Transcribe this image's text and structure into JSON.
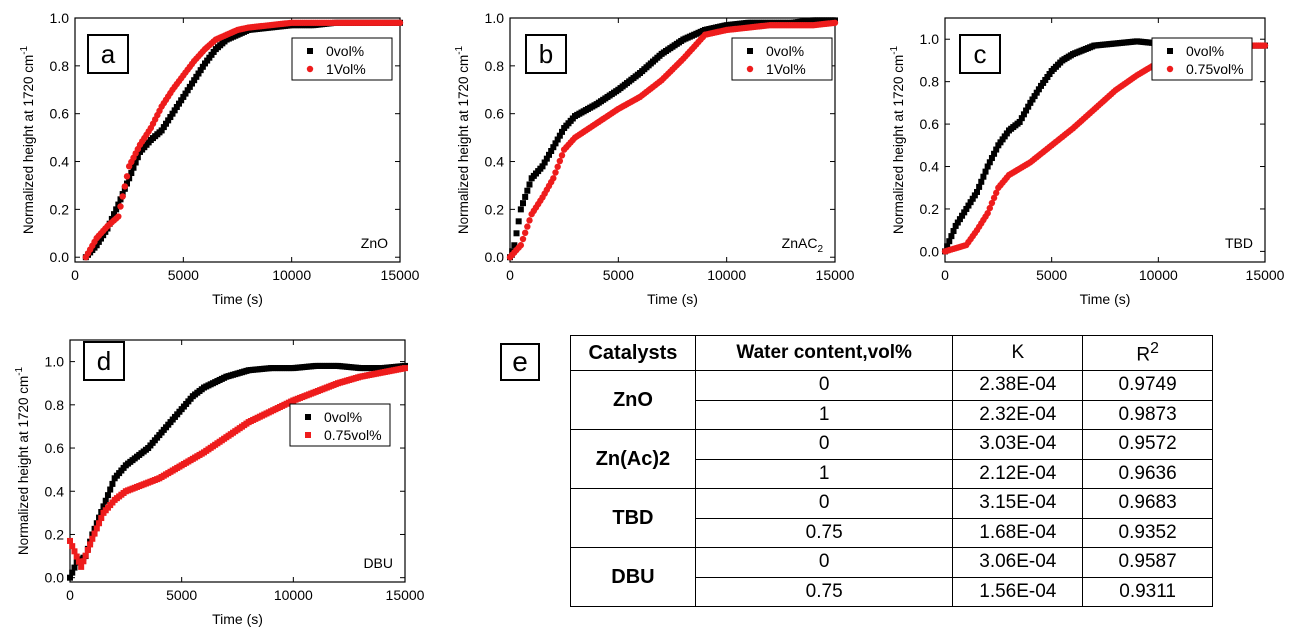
{
  "panels": [
    {
      "id": "a",
      "tag": "a",
      "ylabel": "Normalized height at 1720 cm",
      "ylabel_sup": "-1",
      "xlabel": "Time (s)",
      "corner_label": "ZnO",
      "corner_label_sub": "",
      "xticks": [
        "0",
        "5000",
        "10000",
        "15000"
      ],
      "yticks": [
        "0.0",
        "0.2",
        "0.4",
        "0.6",
        "0.8",
        "1.0"
      ],
      "legend": [
        "0vol%",
        "1Vol%"
      ]
    },
    {
      "id": "b",
      "tag": "b",
      "ylabel": "Normalized height at 1720 cm",
      "ylabel_sup": "-1",
      "xlabel": "Time (s)",
      "corner_label": "ZnAC",
      "corner_label_sub": "2",
      "xticks": [
        "0",
        "5000",
        "10000",
        "15000"
      ],
      "yticks": [
        "0.0",
        "0.2",
        "0.4",
        "0.6",
        "0.8",
        "1.0"
      ],
      "legend": [
        "0vol%",
        "1Vol%"
      ]
    },
    {
      "id": "c",
      "tag": "c",
      "ylabel": "Normalized height at 1720 cm",
      "ylabel_sup": "-1",
      "xlabel": "Time (s)",
      "corner_label": "TBD",
      "corner_label_sub": "",
      "xticks": [
        "0",
        "5000",
        "10000",
        "15000"
      ],
      "yticks": [
        "0.0",
        "0.2",
        "0.4",
        "0.6",
        "0.8",
        "1.0"
      ],
      "legend": [
        "0vol%",
        "0.75vol%"
      ]
    },
    {
      "id": "d",
      "tag": "d",
      "ylabel": "Normalized height at 1720 cm",
      "ylabel_sup": "-1",
      "xlabel": "Time (s)",
      "corner_label": "DBU",
      "corner_label_sub": "",
      "xticks": [
        "0",
        "5000",
        "10000",
        "15000"
      ],
      "yticks": [
        "0.0",
        "0.2",
        "0.4",
        "0.6",
        "0.8",
        "1.0"
      ],
      "legend": [
        "0vol%",
        "0.75vol%"
      ]
    }
  ],
  "table": {
    "tag": "e",
    "headers": {
      "catalysts": "Catalysts",
      "water": "Water content,vol%",
      "k": "K",
      "r": "R",
      "r_sup": "2"
    },
    "groups": [
      {
        "catalyst": "ZnO",
        "rows": [
          {
            "water": "0",
            "k": "2.38E-04",
            "r2": "0.9749"
          },
          {
            "water": "1",
            "k": "2.32E-04",
            "r2": "0.9873"
          }
        ]
      },
      {
        "catalyst": "Zn(Ac)2",
        "rows": [
          {
            "water": "0",
            "k": "3.03E-04",
            "r2": "0.9572"
          },
          {
            "water": "1",
            "k": "2.12E-04",
            "r2": "0.9636"
          }
        ]
      },
      {
        "catalyst": "TBD",
        "rows": [
          {
            "water": "0",
            "k": "3.15E-04",
            "r2": "0.9683"
          },
          {
            "water": "0.75",
            "k": "1.68E-04",
            "r2": "0.9352"
          }
        ]
      },
      {
        "catalyst": "DBU",
        "rows": [
          {
            "water": "0",
            "k": "3.06E-04",
            "r2": "0.9587"
          },
          {
            "water": "0.75",
            "k": "1.56E-04",
            "r2": "0.9311"
          }
        ]
      }
    ]
  },
  "colors": {
    "series0": "#000000",
    "series1": "#ee1c1c"
  },
  "chart_data": [
    {
      "type": "scatter",
      "panel": "a",
      "xlabel": "Time (s)",
      "ylabel": "Normalized height at 1720 cm-1",
      "xlim": [
        0,
        15000
      ],
      "ylim": [
        -0.02,
        1.0
      ],
      "legend_position": "top-right",
      "series": [
        {
          "name": "0vol%",
          "marker": "square",
          "color": "#000000",
          "x": [
            500,
            1000,
            1500,
            2000,
            2500,
            3000,
            3500,
            4000,
            4500,
            5000,
            5500,
            6000,
            6500,
            7000,
            7500,
            8000,
            9000,
            10000,
            11000,
            12000,
            13000,
            14000,
            15000
          ],
          "y": [
            0.0,
            0.05,
            0.12,
            0.22,
            0.33,
            0.44,
            0.49,
            0.53,
            0.6,
            0.67,
            0.74,
            0.81,
            0.87,
            0.91,
            0.93,
            0.95,
            0.96,
            0.97,
            0.97,
            0.98,
            0.98,
            0.98,
            0.98
          ]
        },
        {
          "name": "1Vol%",
          "marker": "circle",
          "color": "#ee1c1c",
          "x": [
            500,
            1000,
            1500,
            2000,
            2500,
            3000,
            3500,
            4000,
            4500,
            5000,
            5500,
            6000,
            6500,
            7000,
            7500,
            8000,
            9000,
            10000,
            11000,
            12000,
            13000,
            14000,
            15000
          ],
          "y": [
            0.0,
            0.08,
            0.13,
            0.17,
            0.38,
            0.47,
            0.54,
            0.63,
            0.7,
            0.76,
            0.82,
            0.87,
            0.91,
            0.93,
            0.95,
            0.96,
            0.97,
            0.98,
            0.98,
            0.98,
            0.98,
            0.98,
            0.98
          ]
        }
      ]
    },
    {
      "type": "scatter",
      "panel": "b",
      "xlabel": "Time (s)",
      "ylabel": "Normalized height at 1720 cm-1",
      "xlim": [
        0,
        15000
      ],
      "ylim": [
        -0.02,
        1.0
      ],
      "legend_position": "top-right",
      "series": [
        {
          "name": "0vol%",
          "marker": "square",
          "color": "#000000",
          "x": [
            0,
            200,
            500,
            1000,
            1500,
            2000,
            2500,
            3000,
            4000,
            5000,
            6000,
            7000,
            8000,
            9000,
            10000,
            11000,
            12000,
            13000,
            14000,
            15000
          ],
          "y": [
            0.0,
            0.05,
            0.2,
            0.33,
            0.38,
            0.46,
            0.54,
            0.59,
            0.64,
            0.7,
            0.77,
            0.85,
            0.91,
            0.95,
            0.97,
            0.98,
            0.98,
            0.98,
            0.99,
            0.99
          ]
        },
        {
          "name": "1Vol%",
          "marker": "circle",
          "color": "#ee1c1c",
          "x": [
            0,
            500,
            1000,
            1500,
            2000,
            2500,
            3000,
            4000,
            5000,
            6000,
            7000,
            8000,
            9000,
            10000,
            11000,
            12000,
            13000,
            14000,
            15000
          ],
          "y": [
            0.0,
            0.05,
            0.18,
            0.25,
            0.33,
            0.45,
            0.5,
            0.56,
            0.62,
            0.67,
            0.74,
            0.83,
            0.93,
            0.95,
            0.96,
            0.97,
            0.97,
            0.97,
            0.98
          ]
        }
      ]
    },
    {
      "type": "scatter",
      "panel": "c",
      "xlabel": "Time (s)",
      "ylabel": "Normalized height at 1720 cm-1",
      "xlim": [
        0,
        15000
      ],
      "ylim": [
        -0.05,
        1.1
      ],
      "legend_position": "top-right",
      "series": [
        {
          "name": "0vol%",
          "marker": "square",
          "color": "#000000",
          "x": [
            0,
            500,
            1000,
            1500,
            2000,
            2500,
            3000,
            3500,
            4000,
            4500,
            5000,
            5500,
            6000,
            6500,
            7000,
            8000,
            9000,
            10000,
            11000,
            12000,
            13000,
            14000,
            15000
          ],
          "y": [
            0.0,
            0.12,
            0.2,
            0.28,
            0.4,
            0.5,
            0.57,
            0.61,
            0.7,
            0.78,
            0.85,
            0.9,
            0.93,
            0.95,
            0.97,
            0.98,
            0.99,
            0.98,
            0.98,
            0.97,
            0.98,
            0.97,
            0.97
          ]
        },
        {
          "name": "0.75vol%",
          "marker": "circle",
          "color": "#ee1c1c",
          "x": [
            0,
            1000,
            1500,
            2000,
            2500,
            3000,
            4000,
            5000,
            6000,
            7000,
            8000,
            9000,
            10000,
            11000,
            12000,
            13000,
            14000,
            15000
          ],
          "y": [
            0.0,
            0.03,
            0.1,
            0.18,
            0.3,
            0.36,
            0.42,
            0.5,
            0.58,
            0.67,
            0.76,
            0.83,
            0.89,
            0.93,
            0.95,
            0.96,
            0.97,
            0.97
          ]
        }
      ]
    },
    {
      "type": "scatter",
      "panel": "d",
      "xlabel": "Time (s)",
      "ylabel": "Normalized height at 1720 cm-1",
      "xlim": [
        0,
        15000
      ],
      "ylim": [
        -0.02,
        1.1
      ],
      "legend_position": "center-right",
      "series": [
        {
          "name": "0vol%",
          "marker": "square",
          "color": "#000000",
          "x": [
            0,
            300,
            700,
            1000,
            1500,
            2000,
            2500,
            3000,
            3500,
            4000,
            4500,
            5000,
            5500,
            6000,
            7000,
            8000,
            9000,
            10000,
            11000,
            12000,
            13000,
            14000,
            15000
          ],
          "y": [
            0.0,
            0.07,
            0.1,
            0.2,
            0.33,
            0.46,
            0.52,
            0.56,
            0.6,
            0.66,
            0.72,
            0.78,
            0.84,
            0.88,
            0.93,
            0.96,
            0.97,
            0.97,
            0.98,
            0.98,
            0.97,
            0.97,
            0.98
          ]
        },
        {
          "name": "0.75vol%",
          "marker": "square",
          "color": "#ee1c1c",
          "x": [
            0,
            500,
            1000,
            1500,
            2000,
            2500,
            3000,
            4000,
            5000,
            6000,
            7000,
            8000,
            9000,
            10000,
            11000,
            12000,
            13000,
            14000,
            15000
          ],
          "y": [
            0.17,
            0.05,
            0.18,
            0.3,
            0.36,
            0.4,
            0.42,
            0.46,
            0.52,
            0.58,
            0.65,
            0.72,
            0.77,
            0.82,
            0.86,
            0.9,
            0.93,
            0.95,
            0.97
          ]
        }
      ]
    }
  ]
}
